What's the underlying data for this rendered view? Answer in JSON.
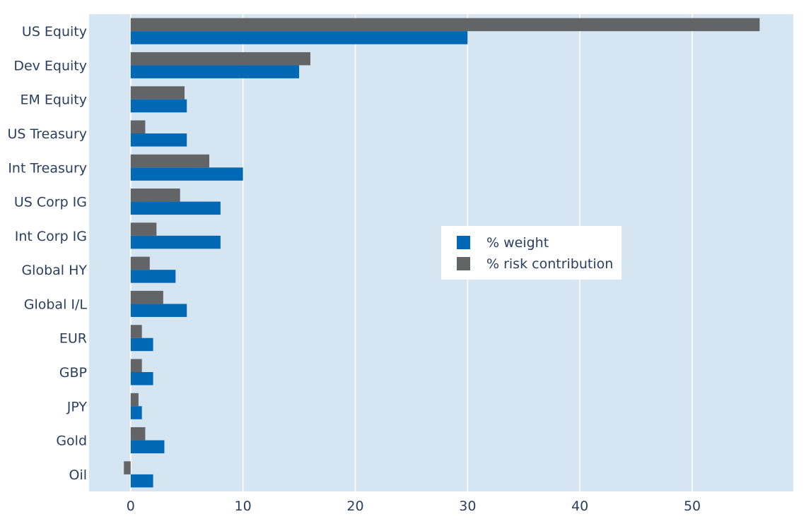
{
  "chart_data": {
    "type": "bar",
    "orientation": "horizontal",
    "categories": [
      "US Equity",
      "Dev Equity",
      "EM Equity",
      "US Treasury",
      "Int Treasury",
      "US Corp IG",
      "Int Corp IG",
      "Global HY",
      "Global I/L",
      "EUR",
      "GBP",
      "JPY",
      "Gold",
      "Oil"
    ],
    "series": [
      {
        "name": "% weight",
        "color": "#0068b5",
        "values": [
          30,
          15,
          5,
          5,
          10,
          8,
          8,
          4,
          5,
          2,
          2,
          1,
          3,
          2
        ]
      },
      {
        "name": "% risk contribution",
        "color": "#636466",
        "values": [
          56,
          16,
          4.8,
          1.3,
          7,
          4.4,
          2.3,
          1.7,
          2.9,
          1,
          1,
          0.7,
          1.3,
          -0.6
        ]
      }
    ],
    "xlim": [
      -3.7,
      59
    ],
    "xticks": [
      0,
      10,
      20,
      30,
      40,
      50
    ],
    "grid": true,
    "legend_position": "center-right",
    "plot_background": "#d5e5f2"
  }
}
